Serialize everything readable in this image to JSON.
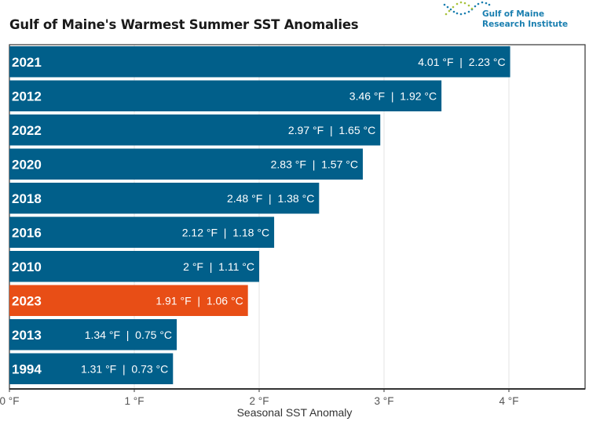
{
  "header": {
    "title": "Gulf of Maine's Warmest Summer SST Anomalies",
    "logo_line1": "Gulf of Maine",
    "logo_line2": "Research Institute"
  },
  "colors": {
    "bar_default": "#015f8a",
    "bar_highlight": "#e84e16",
    "bar_text": "#ffffff",
    "grid": "#e3e3e3",
    "axis": "#333333",
    "logo_blue": "#1a7fb0",
    "logo_green": "#a8c23a"
  },
  "chart_data": {
    "type": "bar",
    "orientation": "horizontal",
    "title": "Gulf of Maine's Warmest Summer SST Anomalies",
    "xlabel": "Seasonal SST Anomaly",
    "ylabel": "",
    "xlim": [
      0,
      4.6
    ],
    "xticks": [
      0,
      1,
      2,
      3,
      4
    ],
    "xtick_labels": [
      "0 °F",
      "1 °F",
      "2 °F",
      "3 °F",
      "4 °F"
    ],
    "grid": true,
    "categories": [
      "2021",
      "2012",
      "2022",
      "2020",
      "2018",
      "2016",
      "2010",
      "2023",
      "2013",
      "1994"
    ],
    "values": [
      4.01,
      3.46,
      2.97,
      2.83,
      2.48,
      2.12,
      2.0,
      1.91,
      1.34,
      1.31
    ],
    "values_celsius": [
      2.23,
      1.92,
      1.65,
      1.57,
      1.38,
      1.18,
      1.11,
      1.06,
      0.75,
      0.73
    ],
    "data_labels": [
      "4.01 °F  |  2.23 °C",
      "3.46 °F  |  1.92 °C",
      "2.97 °F  |  1.65 °C",
      "2.83 °F  |  1.57 °C",
      "2.48 °F  |  1.38 °C",
      "2.12 °F  |  1.18 °C",
      "2 °F  |  1.11 °C",
      "1.91 °F  |  1.06 °C",
      "1.34 °F  |  0.75 °C",
      "1.31 °F  |  0.73 °C"
    ],
    "highlight": [
      "2023"
    ],
    "unit": "°F"
  }
}
